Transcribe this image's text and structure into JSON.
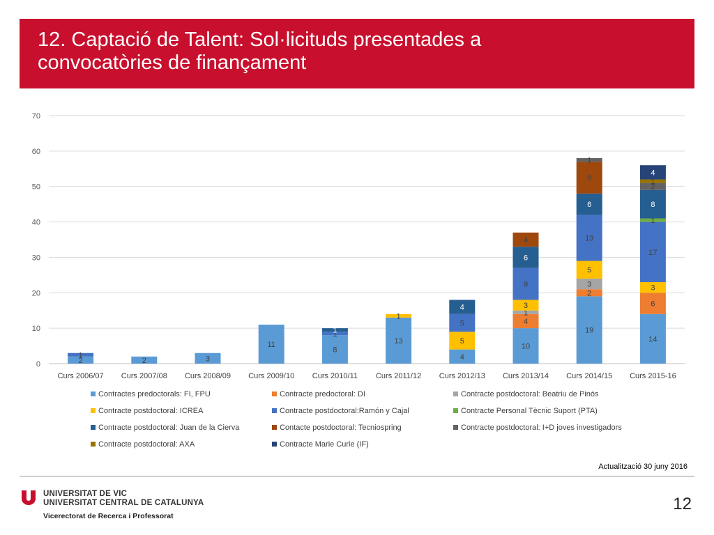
{
  "header": {
    "title_line1": "12. Captació de Talent: Sol·licituds presentades a",
    "title_line2": "convocatòries de finançament"
  },
  "footer": {
    "update_note": "Actualització 30 juny 2016",
    "university_line1": "UNIVERSITAT DE VIC",
    "university_line2": "UNIVERSITAT CENTRAL DE CATALUNYA",
    "department": "Vicerectorat de Recerca i Professorat",
    "page_number": "12"
  },
  "colors": {
    "title_band": "#c8102e",
    "logo": "#c8102e"
  },
  "chart_data": {
    "type": "bar",
    "stacked": true,
    "categories": [
      "Curs 2006/07",
      "Curs 2007/08",
      "Curs 2008/09",
      "Curs 2009/10",
      "Curs 2010/11",
      "Curs 2011/12",
      "Curs 2012/13",
      "Curs 2013/14",
      "Curs 2014/15",
      "Curs 2015-16"
    ],
    "ylim": [
      0,
      70
    ],
    "yticks": [
      0,
      10,
      20,
      30,
      40,
      50,
      60,
      70
    ],
    "grid": true,
    "legend_position": "bottom",
    "series": [
      {
        "name": "Contractes predoctorals: FI, FPU",
        "color": "#5b9bd5",
        "label_color": "#404040",
        "values": [
          2,
          2,
          3,
          11,
          8,
          13,
          4,
          10,
          19,
          14
        ]
      },
      {
        "name": "Contracte predoctoral: DI",
        "color": "#ed7d31",
        "label_color": "#404040",
        "values": [
          0,
          0,
          0,
          0,
          0,
          0,
          0,
          4,
          2,
          6
        ]
      },
      {
        "name": "Contracte postdoctoral: Beatriu de Pinós",
        "color": "#a5a5a5",
        "label_color": "#404040",
        "values": [
          0,
          0,
          0,
          0,
          0,
          0,
          0,
          1,
          3,
          0
        ]
      },
      {
        "name": "Contracte postdoctoral: ICREA",
        "color": "#ffc000",
        "label_color": "#404040",
        "values": [
          0,
          0,
          0,
          0,
          0,
          1,
          5,
          3,
          5,
          3
        ]
      },
      {
        "name": "Contracte postdoctoral:Ramón y Cajal",
        "color": "#4472c4",
        "label_color": "#404040",
        "values": [
          1,
          0,
          0,
          0,
          1,
          0,
          5,
          9,
          13,
          17
        ]
      },
      {
        "name": "Contracte Personal Tècnic Suport (PTA)",
        "color": "#70ad47",
        "label_color": "#404040",
        "values": [
          0,
          0,
          0,
          0,
          0,
          0,
          0,
          0,
          0,
          1
        ]
      },
      {
        "name": "Contracte postdoctoral: Juan de la Cierva",
        "color": "#255e91",
        "label_color": "#ffffff",
        "values": [
          0,
          0,
          0,
          0,
          1,
          0,
          4,
          6,
          6,
          8
        ]
      },
      {
        "name": "Contacte postdoctoral: Tecniospring",
        "color": "#9e480e",
        "label_color": "#404040",
        "values": [
          0,
          0,
          0,
          0,
          0,
          0,
          0,
          4,
          9,
          0
        ]
      },
      {
        "name": "Contracte postdoctoral: I+D joves investigadors",
        "color": "#636363",
        "label_color": "#404040",
        "values": [
          0,
          0,
          0,
          0,
          0,
          0,
          0,
          0,
          1,
          2
        ]
      },
      {
        "name": "Contracte postdoctoral: AXA",
        "color": "#997300",
        "label_color": "#404040",
        "values": [
          0,
          0,
          0,
          0,
          0,
          0,
          0,
          0,
          0,
          1
        ]
      },
      {
        "name": "Contracte Marie Curie (IF)",
        "color": "#264478",
        "label_color": "#ffffff",
        "values": [
          0,
          0,
          0,
          0,
          0,
          0,
          0,
          0,
          0,
          4
        ]
      }
    ]
  }
}
